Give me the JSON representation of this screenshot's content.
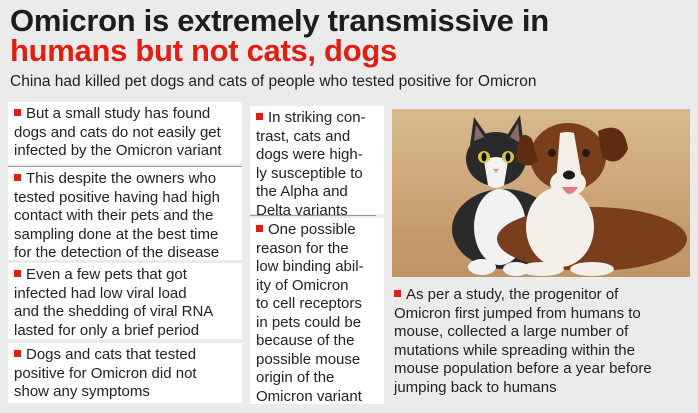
{
  "title": {
    "line1": "Omicron is extremely transmissive in",
    "line2": "humans but not cats, dogs"
  },
  "subtitle": "China had killed pet dogs and cats of people who tested positive for Omicron",
  "column1": [
    {
      "line1": "But a small study has found",
      "line2": "dogs and cats do not easily get",
      "line3": "infected by the Omicron variant"
    },
    {
      "line1": "This despite the owners who",
      "line2": "tested positive having had high",
      "line3": "contact with their pets and the",
      "line4": "sampling done at the best time",
      "line5": "for the detection of the disease"
    },
    {
      "line1": "Even a few pets that got",
      "line2": "infected had low viral load",
      "line3": "and the shedding of viral RNA",
      "line4": "lasted for only a brief period"
    },
    {
      "line1": "Dogs and cats that tested",
      "line2": "positive for Omicron did not",
      "line3": "show any symptoms"
    }
  ],
  "column2": [
    {
      "line1": "In striking con-",
      "line2": "trast, cats and",
      "line3": "dogs were high-",
      "line4": "ly susceptible to",
      "line5": "the Alpha and",
      "line6": "Delta variants"
    },
    {
      "line1": "One possible",
      "line2": "reason for the",
      "line3": "low binding abil-",
      "line4": "ity of Omicron",
      "line5": "to cell receptors",
      "line6": "in pets could be",
      "line7": "because of the",
      "line8": "possible mouse",
      "line9": "origin of the",
      "line10": "Omicron variant"
    }
  ],
  "column3": {
    "line1": "As per a study, the progenitor of",
    "line2": "Omicron first jumped from humans to",
    "line3": "mouse, collected a large number of",
    "line4": "mutations while spreading within the",
    "line5": "mouse population before a year before",
    "line6": "jumping back to humans"
  },
  "photo": {
    "subject": "cat-and-dog-photo"
  },
  "colors": {
    "accent": "#e01e12",
    "background": "#ebebeb",
    "box": "#ffffff"
  }
}
